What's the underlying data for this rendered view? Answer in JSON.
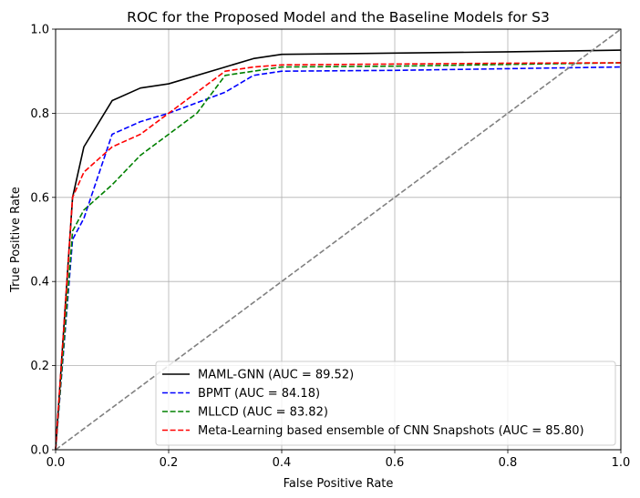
{
  "chart_data": {
    "type": "line",
    "title": "ROC for the Proposed Model and the Baseline Models for S3",
    "xlabel": "False Positive Rate",
    "ylabel": "True Positive Rate",
    "xlim": [
      0,
      1
    ],
    "ylim": [
      0,
      1
    ],
    "xticks": [
      "0.0",
      "0.2",
      "0.4",
      "0.6",
      "0.8",
      "1.0"
    ],
    "yticks": [
      "0.0",
      "0.2",
      "0.4",
      "0.6",
      "0.8",
      "1.0"
    ],
    "grid": true,
    "legend_position": "lower-right",
    "series": [
      {
        "name": "MAML-GNN (AUC = 89.52)",
        "color": "#000000",
        "style": "solid",
        "x": [
          0,
          0.03,
          0.05,
          0.1,
          0.15,
          0.2,
          0.3,
          0.35,
          0.4,
          0.6,
          0.8,
          1.0
        ],
        "y": [
          0,
          0.6,
          0.72,
          0.83,
          0.86,
          0.87,
          0.91,
          0.93,
          0.94,
          0.943,
          0.946,
          0.95
        ]
      },
      {
        "name": "BPMT (AUC = 84.18)",
        "color": "#0000ff",
        "style": "dashed",
        "x": [
          0,
          0.03,
          0.05,
          0.1,
          0.15,
          0.2,
          0.3,
          0.35,
          0.4,
          0.6,
          0.8,
          1.0
        ],
        "y": [
          0,
          0.5,
          0.55,
          0.75,
          0.78,
          0.8,
          0.85,
          0.89,
          0.9,
          0.902,
          0.906,
          0.91
        ]
      },
      {
        "name": "MLLCD (AUC = 83.82)",
        "color": "#008000",
        "style": "dashed",
        "x": [
          0,
          0.03,
          0.05,
          0.1,
          0.15,
          0.2,
          0.25,
          0.3,
          0.35,
          0.4,
          0.6,
          0.8,
          1.0
        ],
        "y": [
          0,
          0.52,
          0.57,
          0.63,
          0.7,
          0.75,
          0.8,
          0.89,
          0.9,
          0.91,
          0.912,
          0.916,
          0.92
        ]
      },
      {
        "name": "Meta-Learning based ensemble of CNN Snapshots (AUC = 85.80)",
        "color": "#ff0000",
        "style": "dashed",
        "x": [
          0,
          0.03,
          0.05,
          0.1,
          0.15,
          0.2,
          0.3,
          0.35,
          0.4,
          0.6,
          0.8,
          1.0
        ],
        "y": [
          0,
          0.6,
          0.66,
          0.72,
          0.75,
          0.8,
          0.9,
          0.91,
          0.915,
          0.917,
          0.919,
          0.92
        ]
      },
      {
        "name": "",
        "color": "#808080",
        "style": "dashed",
        "x": [
          0,
          1
        ],
        "y": [
          0,
          1
        ]
      }
    ]
  }
}
